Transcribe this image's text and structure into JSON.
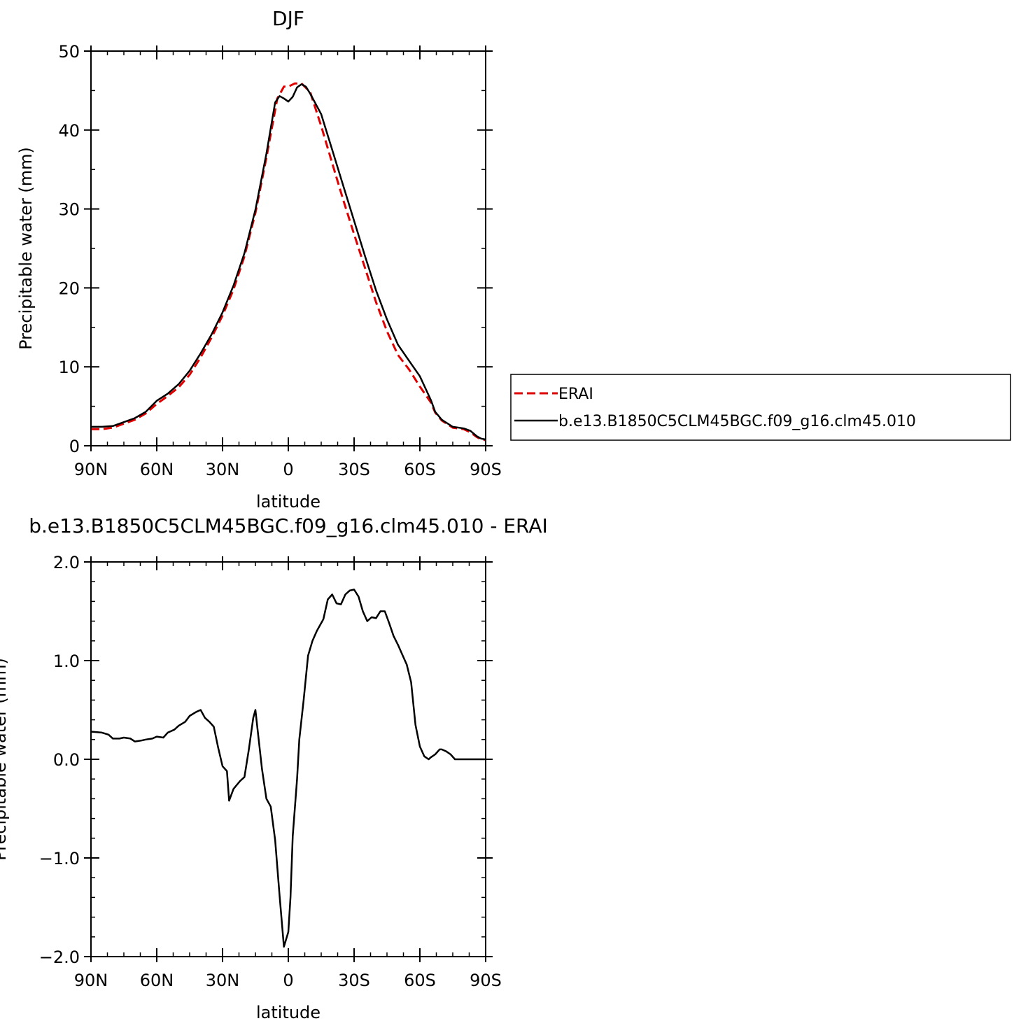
{
  "chart_data": [
    {
      "type": "line",
      "title": "DJF",
      "xlabel": "latitude",
      "ylabel": "Precipitable water (mm)",
      "xlim": [
        90,
        -90
      ],
      "ylim": [
        0,
        50
      ],
      "xticks": [
        90,
        60,
        30,
        0,
        -30,
        -60,
        -90
      ],
      "xtick_labels": [
        "90N",
        "60N",
        "30N",
        "0",
        "30S",
        "60S",
        "90S"
      ],
      "yticks": [
        0,
        10,
        20,
        30,
        40,
        50
      ],
      "ytick_labels": [
        "0",
        "10",
        "20",
        "30",
        "40",
        "50"
      ],
      "legend_position": "right",
      "series": [
        {
          "name": "ERAI",
          "color": "#e00000",
          "style": "dashed",
          "x": [
            90,
            85,
            80,
            75,
            70,
            65,
            60,
            55,
            50,
            45,
            40,
            35,
            30,
            25,
            20,
            15,
            10,
            5,
            2,
            0,
            -3,
            -6,
            -10,
            -15,
            -20,
            -25,
            -30,
            -35,
            -40,
            -45,
            -50,
            -55,
            -60,
            -65,
            -67,
            -70,
            -75,
            -80,
            -83,
            -86,
            -88,
            -90
          ],
          "y": [
            2.1,
            2.1,
            2.3,
            2.8,
            3.3,
            4.1,
            5.3,
            6.3,
            7.4,
            9.0,
            11.2,
            13.7,
            16.5,
            19.8,
            24.0,
            29.5,
            36.5,
            44.0,
            45.5,
            45.5,
            45.9,
            45.9,
            44.8,
            40.5,
            35.8,
            31.2,
            26.8,
            22.5,
            18.2,
            14.5,
            11.5,
            9.7,
            7.5,
            5.5,
            4.2,
            3.2,
            2.3,
            2.1,
            1.7,
            1.1,
            0.8,
            0.7
          ]
        },
        {
          "name": "b.e13.B1850C5CLM45BGC.f09_g16.clm45.010",
          "color": "#000000",
          "style": "solid",
          "x": [
            90,
            85,
            80,
            75,
            70,
            65,
            60,
            55,
            50,
            45,
            40,
            35,
            30,
            25,
            20,
            15,
            10,
            6,
            4,
            2,
            0,
            -2,
            -4,
            -6,
            -8,
            -10,
            -15,
            -20,
            -25,
            -30,
            -35,
            -40,
            -45,
            -50,
            -55,
            -60,
            -65,
            -67,
            -70,
            -75,
            -80,
            -83,
            -86,
            -88,
            -90
          ],
          "y": [
            2.4,
            2.4,
            2.5,
            3.0,
            3.5,
            4.3,
            5.7,
            6.6,
            7.8,
            9.5,
            11.7,
            14.1,
            16.9,
            20.3,
            24.4,
            29.9,
            37.0,
            43.5,
            44.3,
            44.0,
            43.6,
            44.2,
            45.4,
            45.8,
            45.5,
            44.6,
            42.0,
            37.5,
            33.0,
            28.5,
            24.0,
            19.7,
            16.0,
            12.8,
            10.8,
            8.8,
            5.8,
            4.3,
            3.3,
            2.4,
            2.2,
            1.9,
            1.2,
            0.9,
            0.8
          ]
        }
      ]
    },
    {
      "type": "line",
      "title": "b.e13.B1850C5CLM45BGC.f09_g16.clm45.010 - ERAI",
      "xlabel": "latitude",
      "ylabel": "Precipitable water (mm)",
      "xlim": [
        90,
        -90
      ],
      "ylim": [
        -2.0,
        2.0
      ],
      "xticks": [
        90,
        60,
        30,
        0,
        -30,
        -60,
        -90
      ],
      "xtick_labels": [
        "90N",
        "60N",
        "30N",
        "0",
        "30S",
        "60S",
        "90S"
      ],
      "yticks": [
        -2.0,
        -1.0,
        0.0,
        1.0,
        2.0
      ],
      "ytick_labels": [
        "−2.0",
        "−1.0",
        "0.0",
        "1.0",
        "2.0"
      ],
      "series": [
        {
          "color": "#000000",
          "style": "solid",
          "x": [
            90,
            85,
            82,
            80,
            77,
            75,
            72,
            70,
            67,
            65,
            62,
            60,
            57,
            55,
            52,
            50,
            47,
            45,
            42,
            40,
            38,
            36,
            34,
            32,
            30,
            28,
            27,
            25,
            22,
            20,
            18,
            16,
            15,
            14,
            12,
            10,
            8,
            6,
            4,
            2,
            0,
            -1,
            -2,
            -4,
            -5,
            -7,
            -9,
            -11,
            -13,
            -15,
            -16,
            -18,
            -20,
            -22,
            -24,
            -26,
            -28,
            -30,
            -32,
            -34,
            -36,
            -38,
            -40,
            -42,
            -44,
            -46,
            -48,
            -50,
            -52,
            -54,
            -56,
            -58,
            -60,
            -62,
            -64,
            -65,
            -67,
            -69,
            -70,
            -72,
            -74,
            -76,
            -78,
            -80,
            -82,
            -84,
            -86,
            -88,
            -90
          ],
          "y": [
            0.28,
            0.27,
            0.25,
            0.21,
            0.21,
            0.22,
            0.21,
            0.18,
            0.19,
            0.2,
            0.21,
            0.23,
            0.22,
            0.27,
            0.3,
            0.34,
            0.38,
            0.44,
            0.48,
            0.5,
            0.42,
            0.38,
            0.33,
            0.12,
            -0.07,
            -0.12,
            -0.42,
            -0.3,
            -0.22,
            -0.18,
            0.1,
            0.42,
            0.5,
            0.3,
            -0.1,
            -0.4,
            -0.48,
            -0.82,
            -1.38,
            -1.9,
            -1.75,
            -1.4,
            -0.78,
            -0.2,
            0.2,
            0.6,
            1.05,
            1.2,
            1.3,
            1.38,
            1.42,
            1.62,
            1.67,
            1.58,
            1.57,
            1.67,
            1.71,
            1.72,
            1.65,
            1.5,
            1.4,
            1.44,
            1.43,
            1.5,
            1.5,
            1.38,
            1.25,
            1.16,
            1.06,
            0.96,
            0.78,
            0.35,
            0.13,
            0.03,
            0.0,
            0.02,
            0.05,
            0.1,
            0.1,
            0.08,
            0.05,
            0.0,
            0.0,
            0.0,
            0.0,
            0.0,
            0.0,
            0.0,
            0.0
          ]
        }
      ]
    }
  ]
}
